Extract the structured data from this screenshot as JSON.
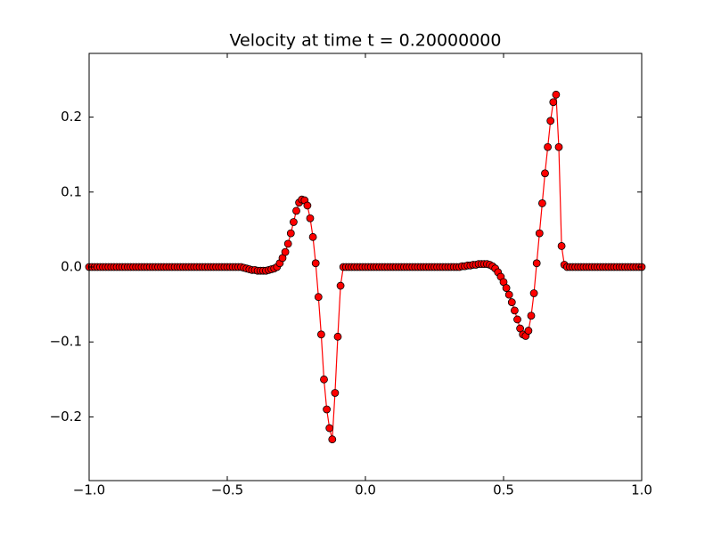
{
  "chart_data": {
    "type": "line",
    "title": "Velocity at time t =      0.20000000",
    "color": "#ff0000",
    "marker_edge_color": "#000000",
    "x": [
      -1,
      -0.99,
      -0.98,
      -0.97,
      -0.96,
      -0.95,
      -0.94,
      -0.93,
      -0.92,
      -0.91,
      -0.9,
      -0.89,
      -0.88,
      -0.87,
      -0.86,
      -0.85,
      -0.84,
      -0.83,
      -0.82,
      -0.81,
      -0.8,
      -0.79,
      -0.78,
      -0.77,
      -0.76,
      -0.75,
      -0.74,
      -0.73,
      -0.72,
      -0.71,
      -0.7,
      -0.69,
      -0.68,
      -0.67,
      -0.66,
      -0.65,
      -0.64,
      -0.63,
      -0.62,
      -0.61,
      -0.6,
      -0.59,
      -0.58,
      -0.57,
      -0.56,
      -0.55,
      -0.54,
      -0.53,
      -0.52,
      -0.51,
      -0.5,
      -0.49,
      -0.48,
      -0.47,
      -0.46,
      -0.45,
      -0.44,
      -0.43,
      -0.42,
      -0.41,
      -0.4,
      -0.39,
      -0.38,
      -0.37,
      -0.36,
      -0.35,
      -0.34,
      -0.33,
      -0.32,
      -0.31,
      -0.3,
      -0.29,
      -0.28,
      -0.27,
      -0.26,
      -0.25,
      -0.24,
      -0.23,
      -0.22,
      -0.21,
      -0.2,
      -0.19,
      -0.18,
      -0.17,
      -0.16,
      -0.15,
      -0.14,
      -0.13,
      -0.12,
      -0.11,
      -0.1,
      -0.09,
      -0.08,
      -0.07,
      -0.06,
      -0.05,
      -0.04,
      -0.03,
      -0.02,
      -0.01,
      0,
      0.01,
      0.02,
      0.03,
      0.04,
      0.05,
      0.06,
      0.07,
      0.08,
      0.09,
      0.1,
      0.11,
      0.12,
      0.13,
      0.14,
      0.15,
      0.16,
      0.17,
      0.18,
      0.19,
      0.2,
      0.21,
      0.22,
      0.23,
      0.24,
      0.25,
      0.26,
      0.27,
      0.28,
      0.29,
      0.3,
      0.31,
      0.32,
      0.33,
      0.34,
      0.35,
      0.36,
      0.37,
      0.38,
      0.39,
      0.4,
      0.41,
      0.42,
      0.43,
      0.44,
      0.45,
      0.46,
      0.47,
      0.48,
      0.49,
      0.5,
      0.51,
      0.52,
      0.53,
      0.54,
      0.55,
      0.56,
      0.57,
      0.58,
      0.59,
      0.6,
      0.61,
      0.62,
      0.63,
      0.64,
      0.65,
      0.66,
      0.67,
      0.68,
      0.69,
      0.7,
      0.71,
      0.72,
      0.73,
      0.74,
      0.75,
      0.76,
      0.77,
      0.78,
      0.79,
      0.8,
      0.81,
      0.82,
      0.83,
      0.84,
      0.85,
      0.86,
      0.87,
      0.88,
      0.89,
      0.9,
      0.91,
      0.92,
      0.93,
      0.94,
      0.95,
      0.96,
      0.97,
      0.98,
      0.99,
      1
    ],
    "values": [
      0,
      0,
      0,
      0,
      0,
      0,
      0,
      0,
      0,
      0,
      0,
      0,
      0,
      0,
      0,
      0,
      0,
      0,
      0,
      0,
      0,
      0,
      0,
      0,
      0,
      0,
      0,
      0,
      0,
      0,
      0,
      0,
      0,
      0,
      0,
      0,
      0,
      0,
      0,
      0,
      0,
      0,
      0,
      0,
      0,
      0,
      0,
      0,
      0,
      0,
      0,
      0,
      0,
      0,
      0,
      0,
      -0.001,
      -0.002,
      -0.003,
      -0.004,
      -0.004,
      -0.005,
      -0.005,
      -0.005,
      -0.005,
      -0.004,
      -0.003,
      -0.002,
      0,
      0.005,
      0.012,
      0.02,
      0.031,
      0.045,
      0.06,
      0.075,
      0.086,
      0.09,
      0.089,
      0.082,
      0.065,
      0.04,
      0.005,
      -0.04,
      -0.09,
      -0.15,
      -0.19,
      -0.215,
      -0.23,
      -0.168,
      -0.093,
      -0.025,
      0,
      0,
      0,
      0,
      0,
      0,
      0,
      0,
      0,
      0,
      0,
      0,
      0,
      0,
      0,
      0,
      0,
      0,
      0,
      0,
      0,
      0,
      0,
      0,
      0,
      0,
      0,
      0,
      0,
      0,
      0,
      0,
      0,
      0,
      0,
      0,
      0,
      0,
      0,
      0,
      0,
      0,
      0,
      0.001,
      0.001,
      0.002,
      0.002,
      0.003,
      0.003,
      0.004,
      0.004,
      0.004,
      0.004,
      0.003,
      0.001,
      -0.002,
      -0.007,
      -0.013,
      -0.02,
      -0.028,
      -0.037,
      -0.047,
      -0.058,
      -0.07,
      -0.082,
      -0.09,
      -0.092,
      -0.085,
      -0.065,
      -0.035,
      0.005,
      0.045,
      0.085,
      0.125,
      0.16,
      0.195,
      0.22,
      0.23,
      0.16,
      0.028,
      0.003,
      0,
      0,
      0,
      0,
      0,
      0,
      0,
      0,
      0,
      0,
      0,
      0,
      0,
      0,
      0,
      0,
      0,
      0,
      0,
      0,
      0,
      0,
      0,
      0,
      0,
      0,
      0,
      0
    ],
    "xlim": [
      -1,
      1
    ],
    "xticks": [
      {
        "value": -1,
        "label": "−1.0"
      },
      {
        "value": -0.5,
        "label": "−0.5"
      },
      {
        "value": 0,
        "label": "0.0"
      },
      {
        "value": 0.5,
        "label": "0.5"
      },
      {
        "value": 1,
        "label": "1.0"
      }
    ],
    "ylim": [
      -0.285,
      0.285
    ],
    "yticks": [
      {
        "value": -0.2,
        "label": "−0.2"
      },
      {
        "value": -0.1,
        "label": "−0.1"
      },
      {
        "value": 0,
        "label": "0.0"
      },
      {
        "value": 0.1,
        "label": "0.1"
      },
      {
        "value": 0.2,
        "label": "0.2"
      }
    ],
    "grid": false
  }
}
